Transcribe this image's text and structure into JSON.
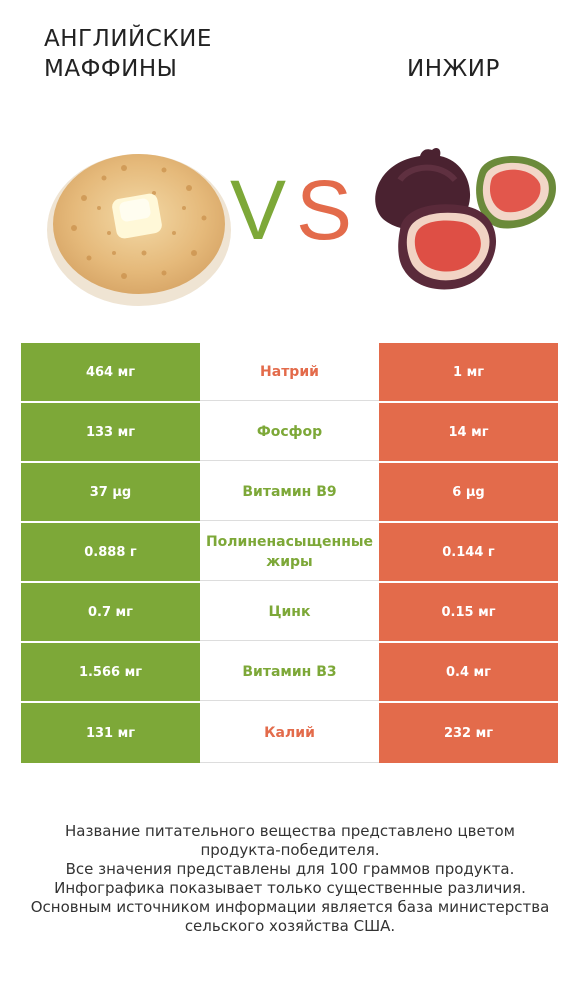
{
  "header": {
    "left_title": "АНГЛИЙСКИЕ МАФФИНЫ",
    "right_title": "ИНЖИР",
    "vs_v": "V",
    "vs_s": "S"
  },
  "colors": {
    "winner_left": "#7da838",
    "winner_right": "#e36b4b"
  },
  "rows": [
    {
      "left": "464 мг",
      "nutrient": "Натрий",
      "right": "1 мг",
      "winner": "right"
    },
    {
      "left": "133 мг",
      "nutrient": "Фосфор",
      "right": "14 мг",
      "winner": "left"
    },
    {
      "left": "37 µg",
      "nutrient": "Витамин B9",
      "right": "6 µg",
      "winner": "left"
    },
    {
      "left": "0.888 г",
      "nutrient": "Полиненасыщенные жиры",
      "right": "0.144 г",
      "winner": "left"
    },
    {
      "left": "0.7 мг",
      "nutrient": "Цинк",
      "right": "0.15 мг",
      "winner": "left"
    },
    {
      "left": "1.566 мг",
      "nutrient": "Витамин B3",
      "right": "0.4 мг",
      "winner": "left"
    },
    {
      "left": "131 мг",
      "nutrient": "Калий",
      "right": "232 мг",
      "winner": "right"
    }
  ],
  "footnote": [
    "Название питательного вещества представлено цветом",
    "продукта-победителя.",
    "Все значения представлены для 100 граммов продукта.",
    "Инфографика показывает только существенные различия.",
    "Основным источником информации является база министерства",
    "сельского хозяйства США."
  ]
}
